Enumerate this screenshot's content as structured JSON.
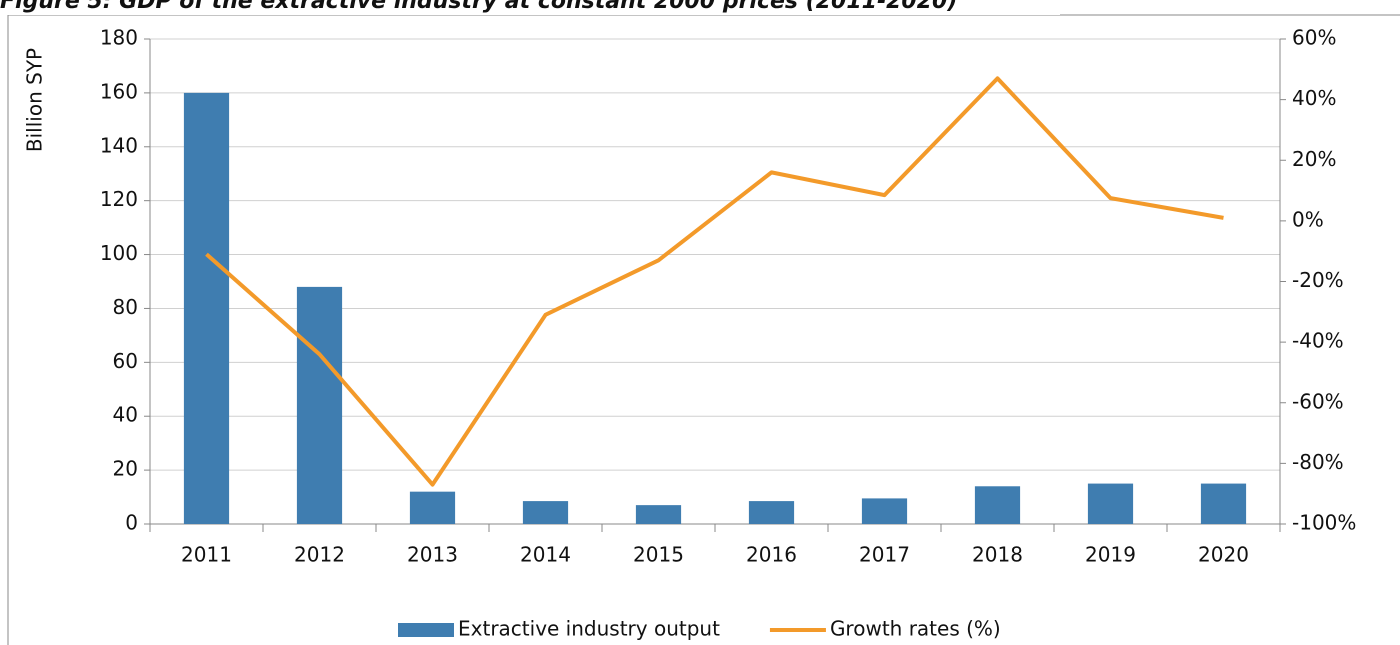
{
  "chart_data": {
    "type": "bar_line",
    "title": "Figure 5: GDP of the extractive industry at constant 2000 prices (2011-2020)",
    "ylabel": "Billion SYP",
    "categories": [
      "2011",
      "2012",
      "2013",
      "2014",
      "2015",
      "2016",
      "2017",
      "2018",
      "2019",
      "2020"
    ],
    "series": [
      {
        "name": "Extractive industry output",
        "type": "bar",
        "color": "#3f7db0",
        "values": [
          160,
          88,
          12,
          8.5,
          7,
          8.5,
          9.5,
          14,
          15,
          15
        ]
      },
      {
        "name": "Growth rates (%)",
        "type": "line",
        "axis": "y2",
        "color": "#f39a2a",
        "values": [
          -11,
          -44,
          -87,
          -31,
          -13,
          16,
          8.5,
          47,
          7.5,
          1
        ]
      }
    ],
    "ylim": [
      0,
      180
    ],
    "yticks": [
      0,
      20,
      40,
      60,
      80,
      100,
      120,
      140,
      160,
      180
    ],
    "y2lim": [
      -100,
      60
    ],
    "y2ticks": [
      {
        "value": -100,
        "label": "-100%"
      },
      {
        "value": -80,
        "label": "-80%"
      },
      {
        "value": -60,
        "label": "-60%"
      },
      {
        "value": -40,
        "label": "-40%"
      },
      {
        "value": -20,
        "label": "-20%"
      },
      {
        "value": 0,
        "label": "0%"
      },
      {
        "value": 20,
        "label": "20%"
      },
      {
        "value": 40,
        "label": "40%"
      },
      {
        "value": 60,
        "label": "60%"
      }
    ],
    "grid": true,
    "legend": "bottom"
  }
}
